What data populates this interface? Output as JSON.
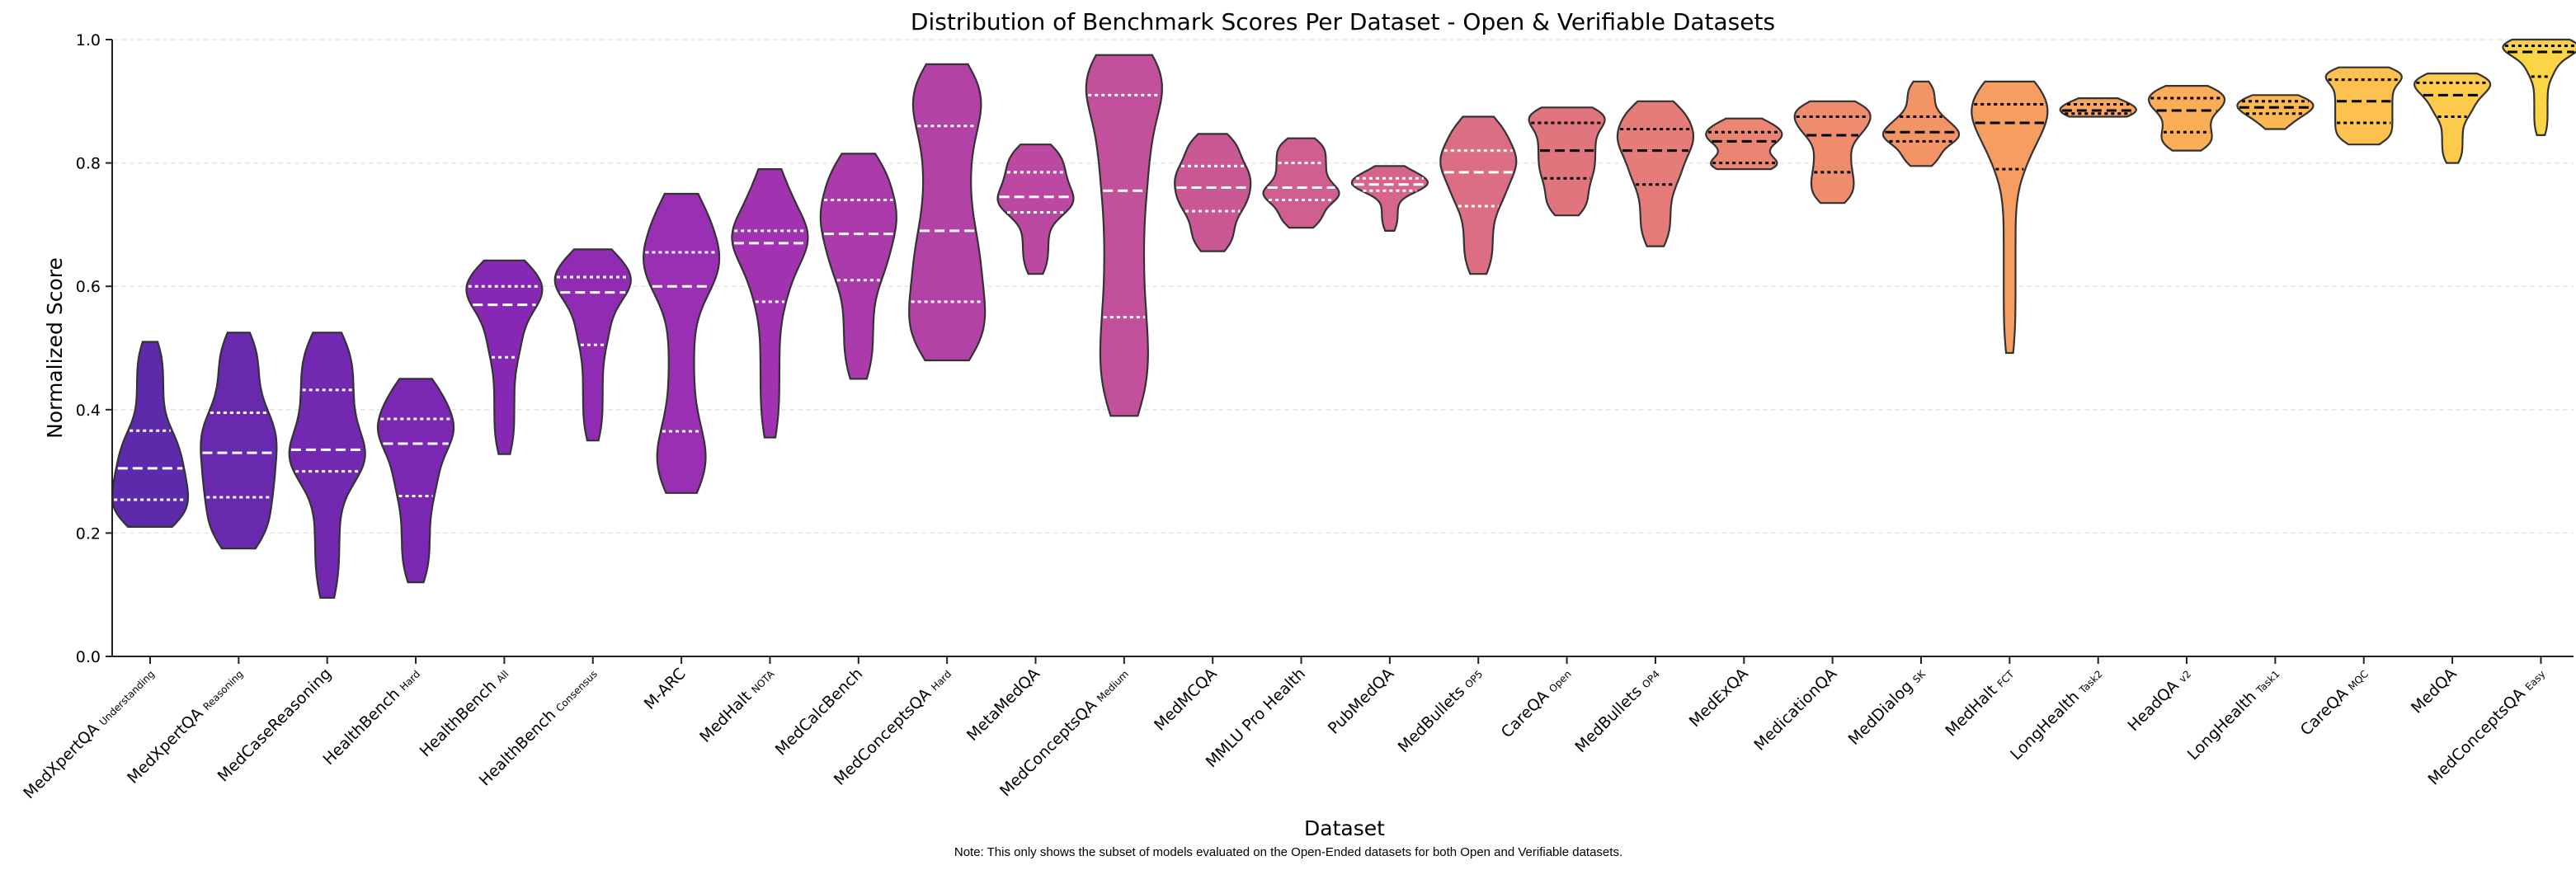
{
  "chart_data": {
    "type": "violin",
    "title": "Distribution of Benchmark Scores Per Dataset - Open & Verifiable Datasets",
    "xlabel": "Dataset",
    "ylabel": "Normalized Score",
    "note": "Note: This only shows the subset of models evaluated on the Open-Ended datasets for both Open and Verifiable datasets.",
    "ylim": [
      0,
      1
    ],
    "yticks": [
      "0.0",
      "0.2",
      "0.4",
      "0.6",
      "0.8",
      "1.0"
    ],
    "grid": "horizontal dashed",
    "colormap": "plasma",
    "categories": [
      {
        "name": "MedXpertQA",
        "sub": "Understanding",
        "min": 0.21,
        "q1": 0.254,
        "median": 0.305,
        "q3": 0.366,
        "max": 0.51
      },
      {
        "name": "MedXpertQA",
        "sub": "Reasoning",
        "min": 0.175,
        "q1": 0.258,
        "median": 0.33,
        "q3": 0.395,
        "max": 0.525
      },
      {
        "name": "MedCaseReasoning",
        "sub": "",
        "min": 0.095,
        "q1": 0.3,
        "median": 0.335,
        "q3": 0.432,
        "max": 0.525
      },
      {
        "name": "HealthBench",
        "sub": "Hard",
        "min": 0.12,
        "q1": 0.26,
        "median": 0.345,
        "q3": 0.385,
        "max": 0.45
      },
      {
        "name": "HealthBench",
        "sub": "All",
        "min": 0.328,
        "q1": 0.485,
        "median": 0.57,
        "q3": 0.6,
        "max": 0.642
      },
      {
        "name": "HealthBench",
        "sub": "Consensus",
        "min": 0.35,
        "q1": 0.505,
        "median": 0.59,
        "q3": 0.615,
        "max": 0.66
      },
      {
        "name": "M-ARC",
        "sub": "",
        "min": 0.265,
        "q1": 0.365,
        "median": 0.6,
        "q3": 0.655,
        "max": 0.75
      },
      {
        "name": "MedHalt",
        "sub": "NOTA",
        "min": 0.355,
        "q1": 0.575,
        "median": 0.67,
        "q3": 0.69,
        "max": 0.79
      },
      {
        "name": "MedCalcBench",
        "sub": "",
        "min": 0.45,
        "q1": 0.61,
        "median": 0.685,
        "q3": 0.74,
        "max": 0.815
      },
      {
        "name": "MedConceptsQA",
        "sub": "Hard",
        "min": 0.48,
        "q1": 0.575,
        "median": 0.69,
        "q3": 0.86,
        "max": 0.96
      },
      {
        "name": "MetaMedQA",
        "sub": "",
        "min": 0.62,
        "q1": 0.72,
        "median": 0.745,
        "q3": 0.785,
        "max": 0.83
      },
      {
        "name": "MedConceptsQA",
        "sub": "Medium",
        "min": 0.39,
        "q1": 0.55,
        "median": 0.755,
        "q3": 0.91,
        "max": 0.975
      },
      {
        "name": "MedMCQA",
        "sub": "",
        "min": 0.657,
        "q1": 0.722,
        "median": 0.76,
        "q3": 0.795,
        "max": 0.847
      },
      {
        "name": "MMLU Pro Health",
        "sub": "",
        "min": 0.695,
        "q1": 0.74,
        "median": 0.76,
        "q3": 0.8,
        "max": 0.84
      },
      {
        "name": "PubMedQA",
        "sub": "",
        "min": 0.69,
        "q1": 0.755,
        "median": 0.765,
        "q3": 0.775,
        "max": 0.795
      },
      {
        "name": "MedBullets",
        "sub": "OP5",
        "min": 0.62,
        "q1": 0.73,
        "median": 0.785,
        "q3": 0.82,
        "max": 0.875
      },
      {
        "name": "CareQA",
        "sub": "Open",
        "min": 0.715,
        "q1": 0.775,
        "median": 0.82,
        "q3": 0.865,
        "max": 0.89
      },
      {
        "name": "MedBullets",
        "sub": "OP4",
        "min": 0.665,
        "q1": 0.765,
        "median": 0.82,
        "q3": 0.855,
        "max": 0.9
      },
      {
        "name": "MedExQA",
        "sub": "",
        "min": 0.79,
        "q1": 0.8,
        "median": 0.835,
        "q3": 0.85,
        "max": 0.872
      },
      {
        "name": "MedicationQA",
        "sub": "",
        "min": 0.735,
        "q1": 0.785,
        "median": 0.845,
        "q3": 0.875,
        "max": 0.9
      },
      {
        "name": "MedDialog",
        "sub": "SK",
        "min": 0.795,
        "q1": 0.835,
        "median": 0.85,
        "q3": 0.875,
        "max": 0.932
      },
      {
        "name": "MedHalt",
        "sub": "FCT",
        "min": 0.492,
        "q1": 0.79,
        "median": 0.865,
        "q3": 0.895,
        "max": 0.932
      },
      {
        "name": "LongHealth",
        "sub": "Task2",
        "min": 0.875,
        "q1": 0.88,
        "median": 0.885,
        "q3": 0.895,
        "max": 0.905
      },
      {
        "name": "HeadQA",
        "sub": "v2",
        "min": 0.82,
        "q1": 0.85,
        "median": 0.885,
        "q3": 0.905,
        "max": 0.925
      },
      {
        "name": "LongHealth",
        "sub": "Task1",
        "min": 0.855,
        "q1": 0.88,
        "median": 0.89,
        "q3": 0.9,
        "max": 0.91
      },
      {
        "name": "CareQA",
        "sub": "MQC",
        "min": 0.83,
        "q1": 0.865,
        "median": 0.9,
        "q3": 0.935,
        "max": 0.955
      },
      {
        "name": "MedQA",
        "sub": "",
        "min": 0.8,
        "q1": 0.875,
        "median": 0.91,
        "q3": 0.93,
        "max": 0.945
      },
      {
        "name": "MedConceptsQA",
        "sub": "Easy",
        "min": 0.845,
        "q1": 0.94,
        "median": 0.98,
        "q3": 0.99,
        "max": 1.0
      }
    ]
  }
}
